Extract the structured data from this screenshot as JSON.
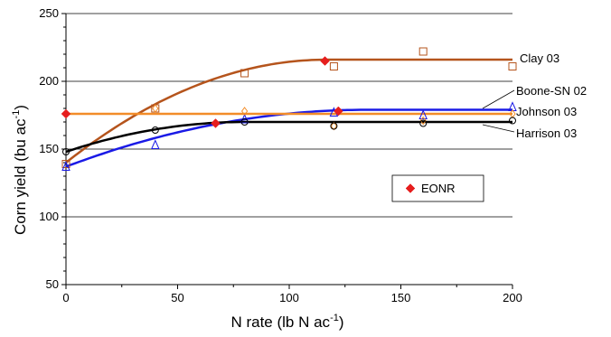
{
  "chart_data": {
    "type": "scatter",
    "title": "",
    "xlabel": {
      "main": "N rate (lb N ac",
      "sup": "-1",
      "close": ")"
    },
    "ylabel": {
      "main": "Corn yield (bu ac",
      "sup": "-1",
      "close": ")"
    },
    "xlim": [
      0,
      200
    ],
    "ylim": [
      50,
      250
    ],
    "xticks": [
      0,
      50,
      100,
      150,
      200
    ],
    "yticks": [
      50,
      100,
      150,
      200,
      250
    ],
    "grid": {
      "horizontal": true,
      "vertical": false
    },
    "colors": {
      "clay": "#b5541c",
      "boone": "#1a1ae6",
      "johnson": "#f28c28",
      "harrison": "#000000",
      "eonr": "#e61e1e",
      "grid": "#000000"
    },
    "series": [
      {
        "name": "Clay 03",
        "key": "clay",
        "marker": "square",
        "points": [
          [
            0,
            139
          ],
          [
            40,
            180
          ],
          [
            80,
            206
          ],
          [
            120,
            211
          ],
          [
            160,
            222
          ],
          [
            200,
            211
          ]
        ],
        "curve": {
          "plateau_x": 117,
          "plateau_y": 216,
          "intercept": 140
        },
        "eonr": [
          116,
          215
        ]
      },
      {
        "name": "Boone-SN 02",
        "key": "boone",
        "marker": "triangle",
        "points": [
          [
            0,
            137
          ],
          [
            40,
            153
          ],
          [
            80,
            172
          ],
          [
            120,
            177
          ],
          [
            160,
            175
          ],
          [
            200,
            181
          ]
        ],
        "curve": {
          "plateau_x": 135,
          "plateau_y": 179,
          "intercept": 137
        },
        "eonr": [
          122,
          178
        ]
      },
      {
        "name": "Johnson 03",
        "key": "johnson",
        "marker": "diamond",
        "points": [
          [
            0,
            176
          ],
          [
            40,
            180
          ],
          [
            80,
            178
          ],
          [
            120,
            167
          ],
          [
            160,
            171
          ],
          [
            200,
            176
          ]
        ],
        "curve": {
          "plateau_x": 0,
          "plateau_y": 176,
          "intercept": 176
        },
        "eonr": [
          0,
          176
        ]
      },
      {
        "name": "Harrison 03",
        "key": "harrison",
        "marker": "circle",
        "points": [
          [
            0,
            148
          ],
          [
            40,
            164
          ],
          [
            80,
            170
          ],
          [
            120,
            167
          ],
          [
            160,
            169
          ],
          [
            200,
            171
          ]
        ],
        "curve": {
          "plateau_x": 80,
          "plateau_y": 170,
          "intercept": 148
        },
        "eonr": [
          67,
          169
        ]
      }
    ],
    "legend": {
      "label": "EONR",
      "marker": "diamond",
      "placement": "center-right"
    }
  }
}
